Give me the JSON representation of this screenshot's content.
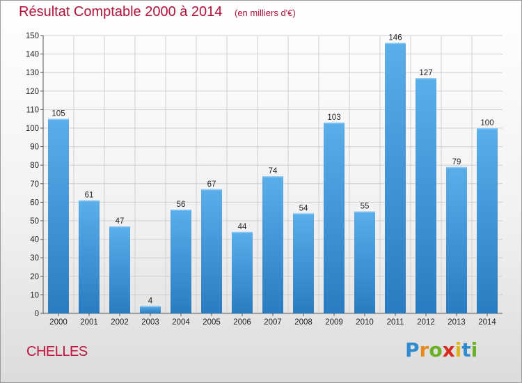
{
  "header": {
    "title": "Résultat Comptable 2000 à 2014",
    "unit": "(en milliers d'€)"
  },
  "footer": {
    "city": "CHELLES",
    "logo_letters": [
      {
        "ch": "P",
        "color": "#2e8bd0"
      },
      {
        "ch": "r",
        "color": "#e68a1a"
      },
      {
        "ch": "o",
        "color": "#6ab023"
      },
      {
        "ch": "x",
        "color": "#d9281c"
      },
      {
        "ch": "i",
        "color": "#e0b414"
      },
      {
        "ch": "t",
        "color": "#2e8bd0"
      },
      {
        "ch": "i",
        "color": "#6ab023"
      }
    ]
  },
  "colors": {
    "bar_light": "#5aaeea",
    "bar_dark": "#2a7cc0",
    "title": "#b0123a"
  },
  "chart_data": {
    "type": "bar",
    "title": "Résultat Comptable 2000 à 2014",
    "subtitle": "(en milliers d'€)",
    "xlabel": "",
    "ylabel": "",
    "categories": [
      "2000",
      "2001",
      "2002",
      "2003",
      "2004",
      "2005",
      "2006",
      "2007",
      "2008",
      "2009",
      "2010",
      "2011",
      "2012",
      "2013",
      "2014"
    ],
    "values": [
      105,
      61,
      47,
      4,
      56,
      67,
      44,
      74,
      54,
      103,
      55,
      146,
      127,
      79,
      100
    ],
    "ylim": [
      0,
      150
    ],
    "yticks": [
      0,
      10,
      20,
      30,
      40,
      50,
      60,
      70,
      80,
      90,
      100,
      110,
      120,
      130,
      140,
      150
    ],
    "grid": true,
    "legend": "none",
    "data_labels": true
  }
}
